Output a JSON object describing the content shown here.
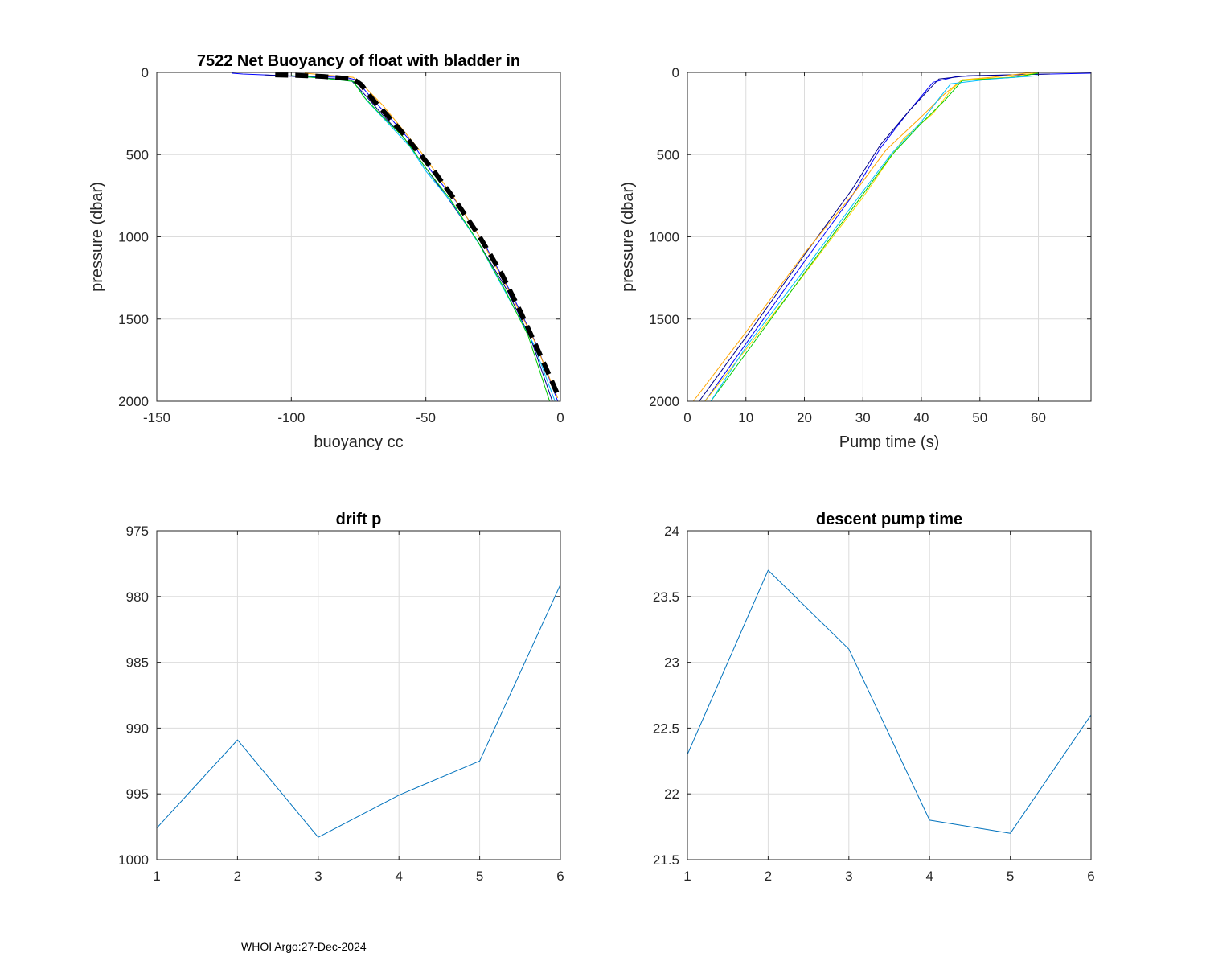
{
  "footer": "WHOI Argo:27-Dec-2024",
  "chart_data": [
    {
      "id": "buoyancy",
      "type": "line",
      "title": "7522 Net Buoyancy of float with bladder in",
      "xlabel": "buoyancy cc",
      "ylabel": "pressure (dbar)",
      "xlim": [
        -150,
        0
      ],
      "ylim": [
        0,
        2000
      ],
      "y_reversed": true,
      "grid": true,
      "xticks": [
        -150,
        -100,
        -50,
        0
      ],
      "yticks": [
        0,
        500,
        1000,
        1500,
        2000
      ],
      "series": [
        {
          "color": "#0000ff",
          "width": 1,
          "points": [
            [
              -122,
              5
            ],
            [
              -118,
              10
            ],
            [
              -95,
              25
            ],
            [
              -80,
              30
            ],
            [
              -76,
              45
            ],
            [
              -70,
              160
            ],
            [
              -62,
              300
            ],
            [
              -55,
              430
            ],
            [
              -48,
              600
            ],
            [
              -38,
              800
            ],
            [
              -28,
              1050
            ],
            [
              -18,
              1350
            ],
            [
              -9,
              1650
            ],
            [
              -1,
              2000
            ]
          ]
        },
        {
          "color": "#00008b",
          "width": 1,
          "points": [
            [
              -110,
              15
            ],
            [
              -92,
              30
            ],
            [
              -78,
              45
            ],
            [
              -73,
              130
            ],
            [
              -66,
              260
            ],
            [
              -58,
              400
            ],
            [
              -51,
              560
            ],
            [
              -42,
              760
            ],
            [
              -31,
              1020
            ],
            [
              -20,
              1320
            ],
            [
              -11,
              1620
            ],
            [
              -3,
              2000
            ]
          ]
        },
        {
          "color": "#00bfff",
          "width": 1,
          "points": [
            [
              -100,
              20
            ],
            [
              -88,
              35
            ],
            [
              -77,
              55
            ],
            [
              -72,
              170
            ],
            [
              -64,
              310
            ],
            [
              -56,
              450
            ],
            [
              -50,
              600
            ],
            [
              -40,
              800
            ],
            [
              -30,
              1050
            ],
            [
              -20,
              1350
            ],
            [
              -10,
              1650
            ],
            [
              -2,
              2000
            ]
          ]
        },
        {
          "color": "#00cc00",
          "width": 1,
          "points": [
            [
              -100,
              20
            ],
            [
              -88,
              35
            ],
            [
              -77,
              55
            ],
            [
              -73,
              150
            ],
            [
              -66,
              270
            ],
            [
              -58,
              400
            ],
            [
              -51,
              560
            ],
            [
              -41,
              770
            ],
            [
              -31,
              1020
            ],
            [
              -21,
              1310
            ],
            [
              -12,
              1600
            ],
            [
              -4,
              2000
            ]
          ]
        },
        {
          "color": "#ffa500",
          "width": 1,
          "points": [
            [
              -95,
              5
            ],
            [
              -88,
              15
            ],
            [
              -77,
              30
            ],
            [
              -72,
              100
            ],
            [
              -66,
              200
            ],
            [
              -58,
              360
            ],
            [
              -52,
              480
            ],
            [
              -40,
              750
            ],
            [
              -30,
              1000
            ],
            [
              -20,
              1300
            ],
            [
              -10,
              1620
            ],
            [
              -1,
              1980
            ]
          ]
        },
        {
          "color": "#000000",
          "width": 6,
          "dash": "16,9",
          "points": [
            [
              -106,
              15
            ],
            [
              -98,
              18
            ],
            [
              -88,
              25
            ],
            [
              -77,
              40
            ],
            [
              -74,
              75
            ],
            [
              -70,
              160
            ],
            [
              -65,
              250
            ],
            [
              -58,
              380
            ],
            [
              -52,
              500
            ],
            [
              -47,
              600
            ],
            [
              -39,
              780
            ],
            [
              -30,
              1000
            ],
            [
              -22,
              1220
            ],
            [
              -15,
              1450
            ],
            [
              -8,
              1700
            ],
            [
              -1,
              1960
            ]
          ]
        }
      ]
    },
    {
      "id": "pump",
      "type": "line",
      "title": "",
      "xlabel": "Pump time (s)",
      "ylabel": "pressure (dbar)",
      "xlim": [
        0,
        69
      ],
      "ylim": [
        0,
        2000
      ],
      "y_reversed": true,
      "grid": true,
      "xticks": [
        0,
        10,
        20,
        30,
        40,
        50,
        60
      ],
      "yticks": [
        0,
        500,
        1000,
        1500,
        2000
      ],
      "series": [
        {
          "color": "#0000ff",
          "width": 1,
          "points": [
            [
              3,
              2000
            ],
            [
              10,
              1650
            ],
            [
              20,
              1150
            ],
            [
              28,
              760
            ],
            [
              33,
              460
            ],
            [
              38,
              230
            ],
            [
              42,
              60
            ],
            [
              46,
              25
            ],
            [
              55,
              15
            ],
            [
              69,
              5
            ]
          ]
        },
        {
          "color": "#00008b",
          "width": 1,
          "points": [
            [
              2,
              2000
            ],
            [
              10,
              1610
            ],
            [
              20,
              1110
            ],
            [
              28,
              720
            ],
            [
              33,
              440
            ],
            [
              38,
              230
            ],
            [
              43,
              40
            ],
            [
              48,
              20
            ],
            [
              62,
              10
            ]
          ]
        },
        {
          "color": "#ffa500",
          "width": 1,
          "points": [
            [
              1,
              2000
            ],
            [
              10,
              1580
            ],
            [
              20,
              1100
            ],
            [
              29,
              710
            ],
            [
              34,
              470
            ],
            [
              40,
              270
            ],
            [
              44,
              130
            ],
            [
              47,
              45
            ],
            [
              52,
              30
            ],
            [
              59,
              0
            ]
          ]
        },
        {
          "color": "#ffd700",
          "width": 1,
          "points": [
            [
              3,
              2000
            ],
            [
              11,
              1640
            ],
            [
              21,
              1180
            ],
            [
              30,
              760
            ],
            [
              37,
              400
            ],
            [
              42,
              250
            ],
            [
              45,
              110
            ],
            [
              47,
              45
            ],
            [
              55,
              30
            ],
            [
              60,
              0
            ]
          ]
        },
        {
          "color": "#00cc00",
          "width": 1,
          "points": [
            [
              4,
              2000
            ],
            [
              11,
              1660
            ],
            [
              20,
              1220
            ],
            [
              29,
              790
            ],
            [
              35,
              500
            ],
            [
              40,
              310
            ],
            [
              44,
              170
            ],
            [
              47,
              50
            ],
            [
              56,
              30
            ],
            [
              60,
              5
            ]
          ]
        },
        {
          "color": "#00bfff",
          "width": 1,
          "points": [
            [
              4,
              2000
            ],
            [
              10,
              1670
            ],
            [
              20,
              1200
            ],
            [
              29,
              770
            ],
            [
              35,
              490
            ],
            [
              40,
              300
            ],
            [
              43,
              160
            ],
            [
              45,
              70
            ],
            [
              52,
              40
            ],
            [
              60,
              20
            ]
          ]
        }
      ]
    },
    {
      "id": "drift",
      "type": "line",
      "title": "drift p",
      "xlabel": "",
      "ylabel": "",
      "xlim": [
        1,
        6
      ],
      "ylim": [
        975,
        1000
      ],
      "y_reversed": true,
      "grid": true,
      "xticks": [
        1,
        2,
        3,
        4,
        5,
        6
      ],
      "yticks": [
        975,
        980,
        985,
        990,
        995,
        1000
      ],
      "series": [
        {
          "color": "#0072bd",
          "width": 1,
          "points": [
            [
              1,
              997.6
            ],
            [
              2,
              990.9
            ],
            [
              3,
              998.3
            ],
            [
              4,
              995.1
            ],
            [
              5,
              992.5
            ],
            [
              6,
              979.1
            ]
          ]
        }
      ]
    },
    {
      "id": "descent",
      "type": "line",
      "title": "descent pump time",
      "xlabel": "",
      "ylabel": "",
      "xlim": [
        1,
        6
      ],
      "ylim": [
        21.5,
        24
      ],
      "y_reversed": false,
      "grid": true,
      "xticks": [
        1,
        2,
        3,
        4,
        5,
        6
      ],
      "yticks": [
        21.5,
        22,
        22.5,
        23,
        23.5,
        24
      ],
      "series": [
        {
          "color": "#0072bd",
          "width": 1,
          "points": [
            [
              1,
              22.3
            ],
            [
              2,
              23.7
            ],
            [
              3,
              23.1
            ],
            [
              4,
              21.8
            ],
            [
              5,
              21.7
            ],
            [
              6,
              22.6
            ]
          ]
        }
      ]
    }
  ]
}
